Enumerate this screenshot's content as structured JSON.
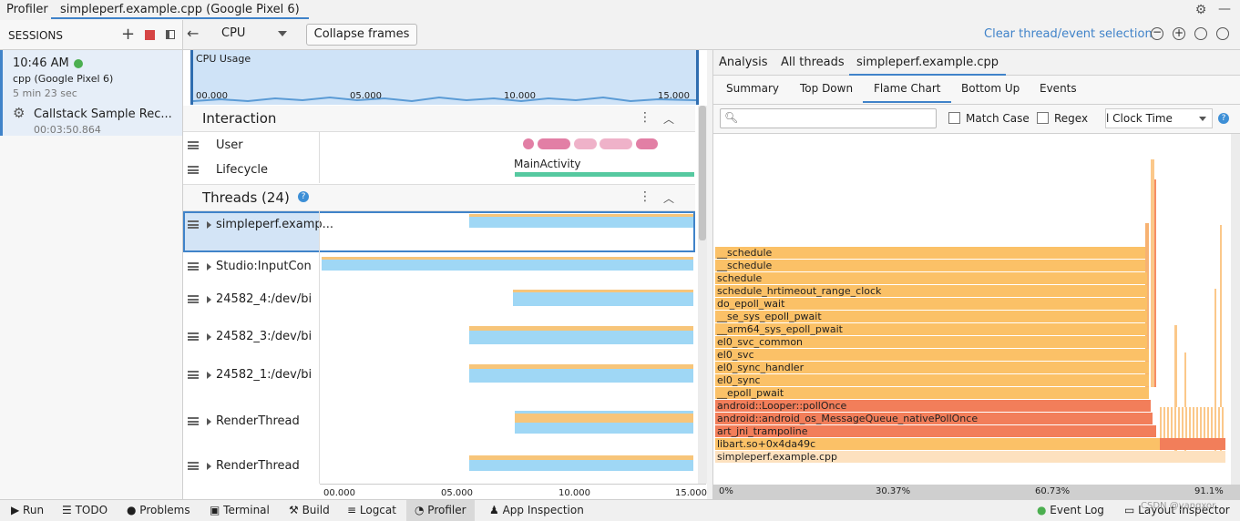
{
  "topbar": {
    "app": "Profiler",
    "tab": "simpleperf.example.cpp (Google Pixel 6)"
  },
  "sessions": {
    "title": "SESSIONS",
    "time": "10:46 AM",
    "device": "cpp (Google Pixel 6)",
    "ago": "5 min 23 sec",
    "capture": "Callstack Sample Rec...",
    "duration": "00:03:50.864"
  },
  "toolbar": {
    "cpu": "CPU",
    "collapse": "Collapse frames",
    "clear": "Clear thread/event selection"
  },
  "cpu_usage": {
    "label": "CPU Usage",
    "ticks": [
      "00.000",
      "05.000",
      "10.000",
      "15.000"
    ]
  },
  "interaction": {
    "title": "Interaction",
    "user": "User",
    "lifecycle": "Lifecycle",
    "activity": "MainActivity"
  },
  "threads": {
    "title": "Threads (24)",
    "items": [
      "simpleperf.examp...",
      "Studio:InputCon",
      "24582_4:/dev/bi",
      "24582_3:/dev/bi",
      "24582_1:/dev/bi",
      "RenderThread",
      "RenderThread"
    ],
    "ticks": [
      "00.000",
      "05.000",
      "10.000",
      "15.000"
    ]
  },
  "analysis": {
    "tabs": [
      "Analysis",
      "All threads",
      "simpleperf.example.cpp"
    ],
    "subtabs": [
      "Summary",
      "Top Down",
      "Flame Chart",
      "Bottom Up",
      "Events"
    ],
    "match_case": "Match Case",
    "regex": "Regex",
    "clock": "l Clock Time",
    "frames": [
      "__schedule",
      "__schedule",
      "schedule",
      "schedule_hrtimeout_range_clock",
      "do_epoll_wait",
      "__se_sys_epoll_pwait",
      "__arm64_sys_epoll_pwait",
      "el0_svc_common",
      "el0_svc",
      "el0_sync_handler",
      "el0_sync",
      "__epoll_pwait",
      "android::Looper::pollOnce",
      "android::android_os_MessageQueue_nativePollOnce",
      "art_jni_trampoline",
      "libart.so+0x4da49c",
      "simpleperf.example.cpp"
    ],
    "axis": [
      "0%",
      "30.37%",
      "60.73%",
      "91.1%"
    ]
  },
  "statusbar": {
    "items": [
      "Run",
      "TODO",
      "Problems",
      "Terminal",
      "Build",
      "Logcat",
      "Profiler",
      "App Inspection"
    ],
    "right": [
      "Event Log",
      "Layout Inspector"
    ],
    "watermark": "CSDN @yangxor"
  }
}
